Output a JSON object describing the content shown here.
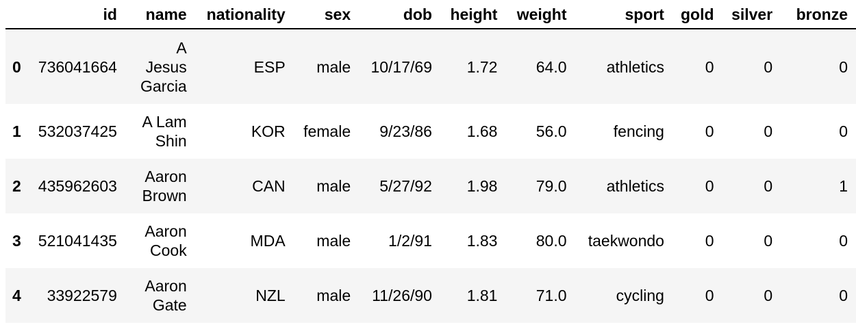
{
  "table": {
    "columns": [
      "id",
      "name",
      "nationality",
      "sex",
      "dob",
      "height",
      "weight",
      "sport",
      "gold",
      "silver",
      "bronze"
    ],
    "rows": [
      {
        "index": "0",
        "id": "736041664",
        "name": [
          "A",
          "Jesus",
          "Garcia"
        ],
        "nationality": "ESP",
        "sex": "male",
        "dob": "10/17/69",
        "height": "1.72",
        "weight": "64.0",
        "sport": "athletics",
        "gold": "0",
        "silver": "0",
        "bronze": "0"
      },
      {
        "index": "1",
        "id": "532037425",
        "name": [
          "A Lam",
          "Shin"
        ],
        "nationality": "KOR",
        "sex": "female",
        "dob": "9/23/86",
        "height": "1.68",
        "weight": "56.0",
        "sport": "fencing",
        "gold": "0",
        "silver": "0",
        "bronze": "0"
      },
      {
        "index": "2",
        "id": "435962603",
        "name": [
          "Aaron",
          "Brown"
        ],
        "nationality": "CAN",
        "sex": "male",
        "dob": "5/27/92",
        "height": "1.98",
        "weight": "79.0",
        "sport": "athletics",
        "gold": "0",
        "silver": "0",
        "bronze": "1"
      },
      {
        "index": "3",
        "id": "521041435",
        "name": [
          "Aaron",
          "Cook"
        ],
        "nationality": "MDA",
        "sex": "male",
        "dob": "1/2/91",
        "height": "1.83",
        "weight": "80.0",
        "sport": "taekwondo",
        "gold": "0",
        "silver": "0",
        "bronze": "0"
      },
      {
        "index": "4",
        "id": "33922579",
        "name": [
          "Aaron",
          "Gate"
        ],
        "nationality": "NZL",
        "sex": "male",
        "dob": "11/26/90",
        "height": "1.81",
        "weight": "71.0",
        "sport": "cycling",
        "gold": "0",
        "silver": "0",
        "bronze": "0"
      }
    ]
  },
  "colors": {
    "stripe": "#f5f5f5",
    "background": "#ffffff",
    "text": "#000000"
  }
}
